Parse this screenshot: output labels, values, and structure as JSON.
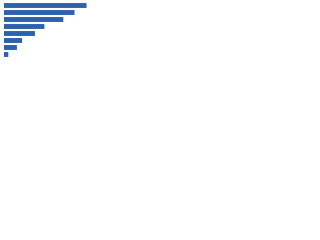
{
  "chart_data": {
    "type": "bar",
    "orientation": "horizontal",
    "categories": [
      null,
      null,
      null,
      null,
      null,
      null,
      null,
      null
    ],
    "values": [
      96,
      82,
      69,
      47,
      36,
      21,
      15,
      5
    ],
    "color": "#2a62b0",
    "xlim": [
      0,
      100
    ]
  }
}
